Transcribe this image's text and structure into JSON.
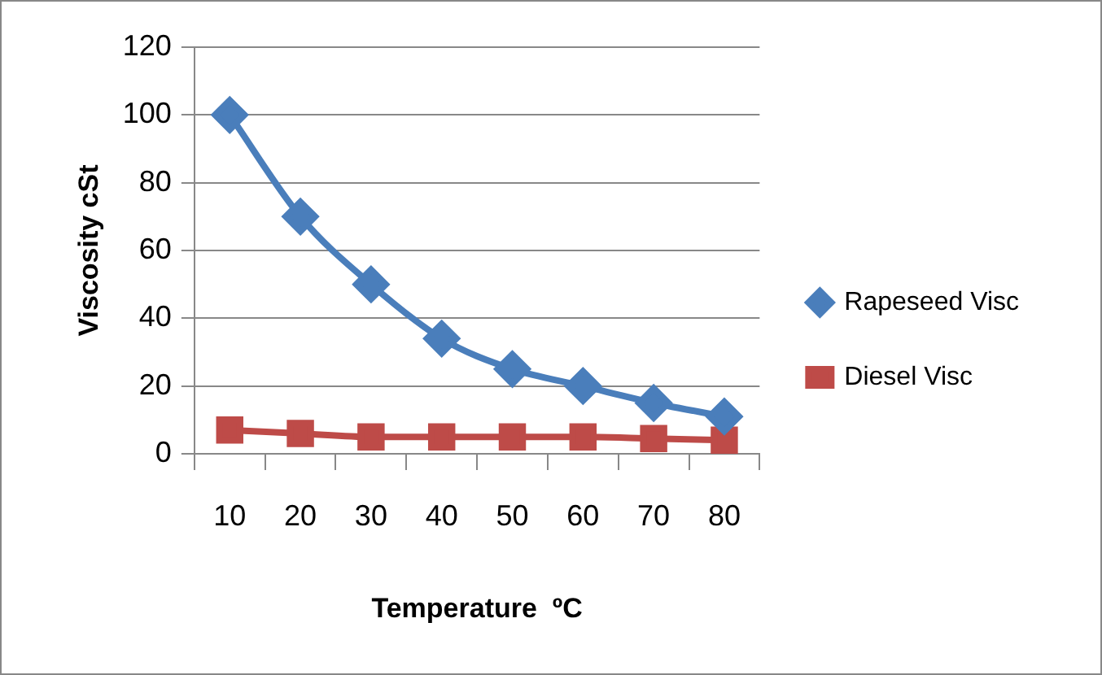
{
  "chart_data": {
    "type": "line",
    "xlabel": "Temperature  ºC",
    "ylabel": "Viscosity cSt",
    "categories": [
      "10",
      "20",
      "30",
      "40",
      "50",
      "60",
      "70",
      "80"
    ],
    "series": [
      {
        "name": "Rapeseed Visc",
        "color": "#4a7ebb",
        "marker": "diamond",
        "values": [
          100,
          70,
          50,
          34,
          25,
          20,
          15,
          11
        ]
      },
      {
        "name": "Diesel Visc",
        "color": "#be4b48",
        "marker": "square",
        "values": [
          7,
          6,
          5,
          5,
          5,
          5,
          4.5,
          4
        ]
      }
    ],
    "ylim": [
      0,
      120
    ],
    "yticks": [
      0,
      20,
      40,
      60,
      80,
      100,
      120
    ],
    "grid": "y",
    "legend": "right"
  }
}
